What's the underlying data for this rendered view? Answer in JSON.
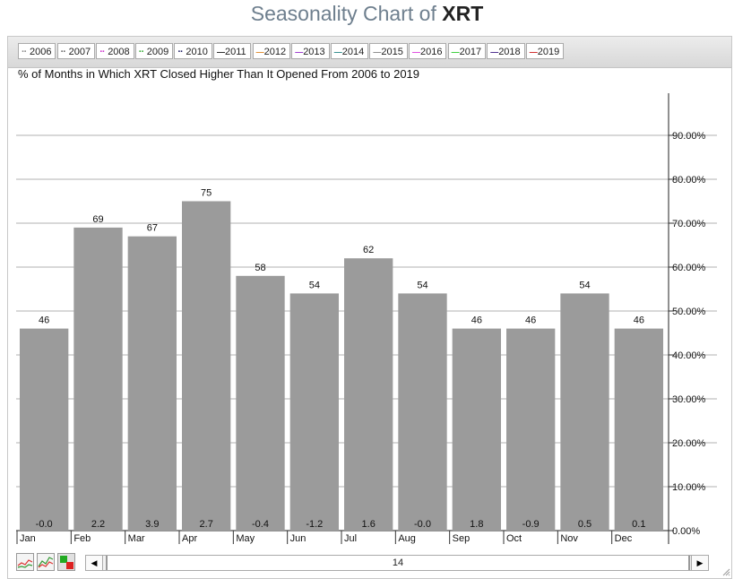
{
  "title": {
    "prefix": "Seasonality Chart of",
    "symbol": "XRT"
  },
  "legend": [
    {
      "label": "2006",
      "color": "#8a8a8a",
      "style": "dotted"
    },
    {
      "label": "2007",
      "color": "#666666",
      "style": "dotted"
    },
    {
      "label": "2008",
      "color": "#cc33cc",
      "style": "dotted"
    },
    {
      "label": "2009",
      "color": "#33aa33",
      "style": "dotted"
    },
    {
      "label": "2010",
      "color": "#222266",
      "style": "dotted"
    },
    {
      "label": "2011",
      "color": "#222222",
      "style": "solid"
    },
    {
      "label": "2012",
      "color": "#e08a2c",
      "style": "solid"
    },
    {
      "label": "2013",
      "color": "#9933cc",
      "style": "solid"
    },
    {
      "label": "2014",
      "color": "#2b8a8a",
      "style": "solid"
    },
    {
      "label": "2015",
      "color": "#888888",
      "style": "solid"
    },
    {
      "label": "2016",
      "color": "#dd44dd",
      "style": "solid"
    },
    {
      "label": "2017",
      "color": "#33cc33",
      "style": "solid"
    },
    {
      "label": "2018",
      "color": "#442288",
      "style": "solid"
    },
    {
      "label": "2019",
      "color": "#cc2222",
      "style": "solid"
    }
  ],
  "chart_data": {
    "type": "bar",
    "subtitle": "% of Months in Which XRT Closed Higher Than It Opened From 2006 to 2019",
    "categories": [
      "Jan",
      "Feb",
      "Mar",
      "Apr",
      "May",
      "Jun",
      "Jul",
      "Aug",
      "Sep",
      "Oct",
      "Nov",
      "Dec"
    ],
    "values": [
      46,
      69,
      67,
      75,
      58,
      54,
      62,
      54,
      46,
      46,
      54,
      46
    ],
    "bottom_labels": [
      "-0.0",
      "2.2",
      "3.9",
      "2.7",
      "-0.4",
      "-1.2",
      "1.6",
      "-0.0",
      "1.8",
      "-0.9",
      "0.5",
      "0.1"
    ],
    "y_ticks": [
      0,
      10,
      20,
      30,
      40,
      50,
      60,
      70,
      80,
      90
    ],
    "y_tick_labels": [
      "0.00%",
      "10.00%",
      "20.00%",
      "30.00%",
      "40.00%",
      "50.00%",
      "60.00%",
      "70.00%",
      "80.00%",
      "90.00%"
    ],
    "ylim": [
      0,
      100
    ],
    "bar_color": "#9b9b9b",
    "grid": true
  },
  "scrollbar": {
    "value": "14",
    "left_arrow": "◀",
    "right_arrow": "▶"
  }
}
